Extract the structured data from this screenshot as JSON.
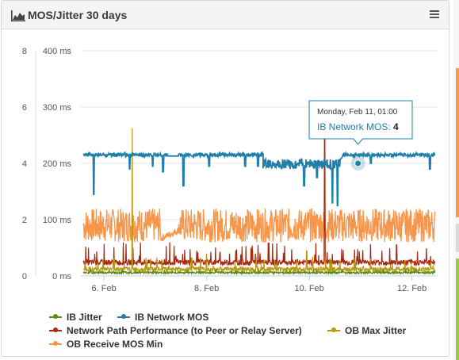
{
  "widget": {
    "title": "MOS/Jitter 30 days",
    "header_icon": "area-chart-icon",
    "menu_icon": "hamburger-menu-icon"
  },
  "tooltip": {
    "date": "Monday, Feb 11, 01:00",
    "series": "IB Network MOS",
    "value": "4"
  },
  "colors": {
    "ib_jitter": "#5a8a0f",
    "ib_network_mos": "#1f7fa8",
    "network_path": "#a8290f",
    "ob_max_jitter": "#b8970a",
    "ob_receive_mos_min": "#f7964a",
    "edge_orange": "#f39a4c",
    "edge_gray": "#d9d9d9",
    "edge_green": "#9ac94a"
  },
  "chart_data": {
    "type": "line",
    "title": "MOS/Jitter 30 days",
    "x_ticks": [
      "6. Feb",
      "8. Feb",
      "10. Feb",
      "12. Feb"
    ],
    "x_tick_values": [
      6,
      8,
      10,
      12
    ],
    "xlim": [
      5.55,
      12.5
    ],
    "y_axis_left": {
      "ticks": [
        "0",
        "2",
        "4",
        "6",
        "8"
      ],
      "tick_values": [
        0,
        2,
        4,
        6,
        8
      ],
      "ylim": [
        0,
        8
      ]
    },
    "y_axis_right": {
      "ticks": [
        "0 ms",
        "100 ms",
        "200 ms",
        "300 ms",
        "400 ms"
      ],
      "tick_values": [
        0,
        100,
        200,
        300,
        400
      ],
      "ylim": [
        0,
        400
      ]
    },
    "grid": true,
    "legend": "bottom",
    "series": [
      {
        "name": "IB Jitter",
        "axis": "ms",
        "color_key": "ib_jitter",
        "description_values": {
          "baseline": 4,
          "typical_max": 12
        }
      },
      {
        "name": "IB Network MOS",
        "axis": "mos",
        "color_key": "ib_network_mos",
        "segments": [
          {
            "x": [
              5.6,
              7.25
            ],
            "level": 4.3,
            "dips": [
              [
                5.8,
                2.9
              ],
              [
                6.5,
                3.8
              ],
              [
                6.95,
                3.9
              ],
              [
                7.15,
                3.7
              ]
            ]
          },
          {
            "x": [
              7.45,
              8.3
            ],
            "level": 4.3,
            "dips": [
              [
                7.55,
                3.2
              ],
              [
                8.05,
                3.9
              ]
            ]
          },
          {
            "x": [
              8.3,
              9.1
            ],
            "level": 4.3,
            "dips": [
              [
                8.75,
                3.9
              ],
              [
                9.0,
                3.9
              ]
            ]
          },
          {
            "x": [
              9.1,
              10.6
            ],
            "level": 4.0,
            "dips": [
              [
                9.9,
                3.2
              ],
              [
                10.15,
                3.5
              ],
              [
                10.45,
                2.6
              ],
              [
                10.55,
                2.5
              ]
            ]
          },
          {
            "x": [
              10.65,
              12.45
            ],
            "level": 4.3,
            "dips": [
              [
                11.2,
                4.0
              ],
              [
                12.35,
                3.8
              ]
            ]
          }
        ]
      },
      {
        "name": "Network Path Performance (to Peer or Relay Server)",
        "axis": "ms",
        "color_key": "network_path",
        "description_values": {
          "baseline": 25,
          "spikes": [
            [
              10.3,
              260
            ],
            [
              7.4,
              35
            ],
            [
              5.7,
              50
            ],
            [
              9.0,
              55
            ],
            [
              11.7,
              55
            ]
          ]
        }
      },
      {
        "name": "OB Max Jitter",
        "axis": "ms",
        "color_key": "ob_max_jitter",
        "description_values": {
          "baseline": 8,
          "spikes": [
            [
              6.55,
              262
            ],
            [
              9.95,
              45
            ],
            [
              8.0,
              40
            ],
            [
              6.2,
              30
            ]
          ]
        }
      },
      {
        "name": "OB Receive MOS Min",
        "axis": "mos",
        "color_key": "ob_receive_mos_min",
        "description_values": {
          "center": 1.7,
          "low": 1.2,
          "high": 2.4,
          "gap": [
            7.1,
            7.45
          ]
        }
      }
    ],
    "tooltip_point": {
      "x": 10.95,
      "y": 4,
      "series": "IB Network MOS"
    }
  },
  "legend": {
    "items": [
      {
        "label": "IB Jitter",
        "color_key": "ib_jitter"
      },
      {
        "label": "IB Network MOS",
        "color_key": "ib_network_mos"
      },
      {
        "label": "Network Path Performance (to Peer or Relay Server)",
        "color_key": "network_path"
      },
      {
        "label": "OB Max Jitter",
        "color_key": "ob_max_jitter"
      },
      {
        "label": "OB Receive MOS Min",
        "color_key": "ob_receive_mos_min"
      }
    ]
  }
}
